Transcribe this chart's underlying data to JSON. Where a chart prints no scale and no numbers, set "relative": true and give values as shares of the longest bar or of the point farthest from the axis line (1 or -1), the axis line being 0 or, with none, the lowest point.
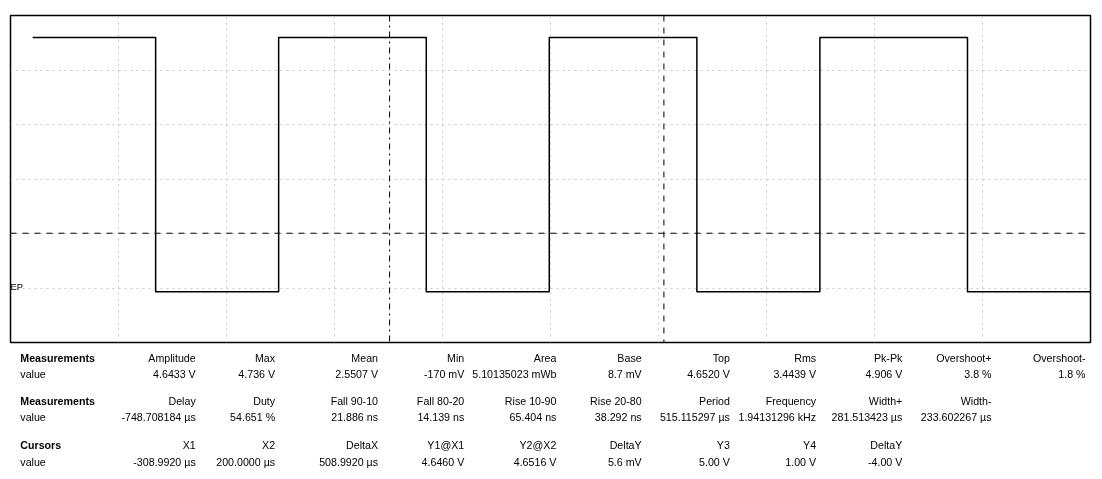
{
  "chart_data": {
    "type": "step",
    "relative": true,
    "grid": true,
    "categories": [
      null,
      null,
      null,
      null,
      null,
      null,
      null,
      null,
      null,
      null,
      null,
      null,
      null,
      null,
      null,
      null,
      null,
      null,
      null,
      null,
      null,
      null,
      null,
      null,
      null,
      null,
      null,
      null,
      null,
      null,
      null,
      null,
      null,
      null,
      null,
      null,
      null,
      null,
      null,
      null,
      null,
      null,
      null,
      null
    ],
    "series": [
      {
        "color": "#000000",
        "values": [
          1,
          1,
          1,
          1,
          1,
          0,
          0,
          0,
          0,
          0,
          1,
          1,
          1,
          1,
          1,
          1,
          0,
          0,
          0,
          0,
          0,
          1,
          1,
          1,
          1,
          1,
          1,
          0,
          0,
          0,
          0,
          0,
          1,
          1,
          1,
          1,
          1,
          1,
          0,
          0,
          0,
          0,
          0,
          0
        ]
      }
    ],
    "ref_lines": [
      {
        "axis": "y",
        "value": 0.23,
        "line_style": "dashed",
        "color": "#000000"
      }
    ],
    "annotations": [
      "EP",
      "Measurements",
      "Amplitude",
      "Max",
      "Mean",
      "Min",
      "Area",
      "Base",
      "Top",
      "Rms",
      "Pk-Pk",
      "Overshoot+",
      "Overshoot-",
      "value",
      "4.6433 V",
      "4.736 V",
      "2.5507 V",
      "-170 mV",
      "5.10135023 mWb",
      "8.7 mV",
      "4.6520 V",
      "3.4439 V",
      "4.906 V",
      "3.8 %",
      "1.8 %",
      "Measurements",
      "Delay",
      "Duty",
      "Fall 90-10",
      "Fall 80-20",
      "Rise 10-90",
      "Rise 20-80",
      "Period",
      "Frequency",
      "Width+",
      "Width-",
      "value",
      "-748.708184 µs",
      "54.651 %",
      "21.886 ns",
      "14.139 ns",
      "65.404 ns",
      "38.292 ns",
      "515.115297 µs",
      "1.94131296 kHz",
      "281.513423 µs",
      "233.602267 µs",
      "Cursors",
      "X1",
      "X2",
      "DeltaX",
      "Y1@X1",
      "Y2@X2",
      "DeltaY",
      "Y3",
      "Y4",
      "DeltaY",
      "value",
      "-308.9920 µs",
      "200.0000 µs",
      "508.9920 µs",
      "4.6460 V",
      "4.6516 V",
      "5.6 mV",
      "5.00 V",
      "1.00 V",
      "-4.00 V"
    ]
  }
}
